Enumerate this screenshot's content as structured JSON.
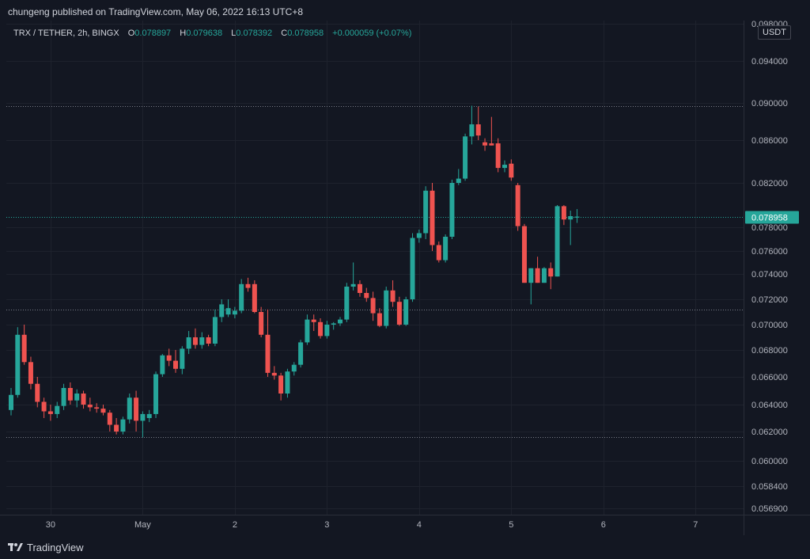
{
  "header": {
    "publisher_line": "chungeng published on TradingView.com, May 06, 2022 16:13 UTC+8"
  },
  "legend": {
    "symbol": "TRX / TETHER, 2h, BINGX",
    "o_label": "O",
    "o_value": "0.078897",
    "h_label": "H",
    "h_value": "0.079638",
    "l_label": "L",
    "l_value": "0.078392",
    "c_label": "C",
    "c_value": "0.078958",
    "change": "+0.000059 (+0.07%)"
  },
  "price_axis": {
    "unit": "USDT",
    "current_price": "0.078958"
  },
  "footer": {
    "brand": "TradingView"
  },
  "colors": {
    "background": "#131722",
    "up": "#26a69a",
    "down": "#ef5350",
    "grid": "#1e222d",
    "text": "#d1d4dc"
  },
  "chart_data": {
    "type": "candlestick",
    "title": "TRX / TETHER, 2h, BINGX",
    "y_unit": "USDT",
    "yticks": [
      0.0569,
      0.0584,
      0.06,
      0.062,
      0.064,
      0.066,
      0.068,
      0.07,
      0.072,
      0.074,
      0.076,
      0.078,
      0.082,
      0.086,
      0.09,
      0.094,
      0.098
    ],
    "ytick_labels": [
      "0.056900",
      "0.058400",
      "0.060000",
      "0.062000",
      "0.064000",
      "0.066000",
      "0.068000",
      "0.070000",
      "0.072000",
      "0.074000",
      "0.076000",
      "0.078000",
      "0.082000",
      "0.086000",
      "0.090000",
      "0.094000",
      "0.098000"
    ],
    "ylim": [
      0.0562,
      0.0985
    ],
    "xtick_labels": [
      "30",
      "May",
      "2",
      "3",
      "4",
      "5",
      "6",
      "7"
    ],
    "xtick_candle_index": [
      6,
      20,
      34,
      48,
      62,
      76,
      90,
      104
    ],
    "current_price": 0.078958,
    "horizontal_lines": [
      0.0897,
      0.0712,
      0.0616
    ],
    "candles": [
      {
        "o": 0.0636,
        "h": 0.0652,
        "l": 0.0632,
        "c": 0.0647
      },
      {
        "o": 0.0647,
        "h": 0.0698,
        "l": 0.0645,
        "c": 0.0692
      },
      {
        "o": 0.0692,
        "h": 0.07,
        "l": 0.0669,
        "c": 0.0671
      },
      {
        "o": 0.0671,
        "h": 0.0675,
        "l": 0.0651,
        "c": 0.0655
      },
      {
        "o": 0.0655,
        "h": 0.066,
        "l": 0.0638,
        "c": 0.0642
      },
      {
        "o": 0.0642,
        "h": 0.0645,
        "l": 0.063,
        "c": 0.0635
      },
      {
        "o": 0.0635,
        "h": 0.064,
        "l": 0.0628,
        "c": 0.0633
      },
      {
        "o": 0.0633,
        "h": 0.0642,
        "l": 0.063,
        "c": 0.0639
      },
      {
        "o": 0.0639,
        "h": 0.0655,
        "l": 0.0636,
        "c": 0.0652
      },
      {
        "o": 0.0652,
        "h": 0.0656,
        "l": 0.064,
        "c": 0.0643
      },
      {
        "o": 0.0643,
        "h": 0.0651,
        "l": 0.0638,
        "c": 0.0648
      },
      {
        "o": 0.0648,
        "h": 0.065,
        "l": 0.0637,
        "c": 0.064
      },
      {
        "o": 0.064,
        "h": 0.0645,
        "l": 0.0635,
        "c": 0.0638
      },
      {
        "o": 0.0638,
        "h": 0.0641,
        "l": 0.0634,
        "c": 0.0637
      },
      {
        "o": 0.0637,
        "h": 0.064,
        "l": 0.0632,
        "c": 0.0634
      },
      {
        "o": 0.0634,
        "h": 0.0636,
        "l": 0.062,
        "c": 0.0625
      },
      {
        "o": 0.0625,
        "h": 0.063,
        "l": 0.0618,
        "c": 0.062
      },
      {
        "o": 0.062,
        "h": 0.0631,
        "l": 0.0618,
        "c": 0.0629
      },
      {
        "o": 0.0629,
        "h": 0.0648,
        "l": 0.0626,
        "c": 0.0645
      },
      {
        "o": 0.0645,
        "h": 0.065,
        "l": 0.062,
        "c": 0.0628
      },
      {
        "o": 0.0628,
        "h": 0.0635,
        "l": 0.0616,
        "c": 0.0633
      },
      {
        "o": 0.063,
        "h": 0.0636,
        "l": 0.0627,
        "c": 0.0633
      },
      {
        "o": 0.0633,
        "h": 0.0664,
        "l": 0.063,
        "c": 0.0662
      },
      {
        "o": 0.0662,
        "h": 0.0677,
        "l": 0.066,
        "c": 0.0676
      },
      {
        "o": 0.0676,
        "h": 0.0681,
        "l": 0.0668,
        "c": 0.0672
      },
      {
        "o": 0.0672,
        "h": 0.068,
        "l": 0.0663,
        "c": 0.0666
      },
      {
        "o": 0.0666,
        "h": 0.0683,
        "l": 0.0662,
        "c": 0.0681
      },
      {
        "o": 0.0681,
        "h": 0.0695,
        "l": 0.0677,
        "c": 0.069
      },
      {
        "o": 0.069,
        "h": 0.0697,
        "l": 0.0681,
        "c": 0.0684
      },
      {
        "o": 0.0684,
        "h": 0.0694,
        "l": 0.0681,
        "c": 0.069
      },
      {
        "o": 0.069,
        "h": 0.0692,
        "l": 0.0683,
        "c": 0.0685
      },
      {
        "o": 0.0685,
        "h": 0.0712,
        "l": 0.0683,
        "c": 0.0706
      },
      {
        "o": 0.0706,
        "h": 0.072,
        "l": 0.0702,
        "c": 0.0716
      },
      {
        "o": 0.0708,
        "h": 0.072,
        "l": 0.0706,
        "c": 0.0713
      },
      {
        "o": 0.0708,
        "h": 0.0714,
        "l": 0.0705,
        "c": 0.0711
      },
      {
        "o": 0.0711,
        "h": 0.0736,
        "l": 0.0709,
        "c": 0.0732
      },
      {
        "o": 0.0732,
        "h": 0.0737,
        "l": 0.0726,
        "c": 0.0729
      },
      {
        "o": 0.0732,
        "h": 0.0735,
        "l": 0.0709,
        "c": 0.071
      },
      {
        "o": 0.071,
        "h": 0.0714,
        "l": 0.069,
        "c": 0.0692
      },
      {
        "o": 0.0692,
        "h": 0.0712,
        "l": 0.066,
        "c": 0.0663
      },
      {
        "o": 0.0663,
        "h": 0.0668,
        "l": 0.0658,
        "c": 0.0661
      },
      {
        "o": 0.0661,
        "h": 0.0663,
        "l": 0.0643,
        "c": 0.0648
      },
      {
        "o": 0.0648,
        "h": 0.0666,
        "l": 0.0645,
        "c": 0.0664
      },
      {
        "o": 0.0664,
        "h": 0.0671,
        "l": 0.0661,
        "c": 0.0669
      },
      {
        "o": 0.0669,
        "h": 0.0688,
        "l": 0.0667,
        "c": 0.0686
      },
      {
        "o": 0.0686,
        "h": 0.0708,
        "l": 0.0684,
        "c": 0.0704
      },
      {
        "o": 0.0704,
        "h": 0.0708,
        "l": 0.0695,
        "c": 0.0702
      },
      {
        "o": 0.0702,
        "h": 0.0705,
        "l": 0.0689,
        "c": 0.0691
      },
      {
        "o": 0.0691,
        "h": 0.0703,
        "l": 0.0689,
        "c": 0.07
      },
      {
        "o": 0.07,
        "h": 0.0702,
        "l": 0.0696,
        "c": 0.0701
      },
      {
        "o": 0.0701,
        "h": 0.0706,
        "l": 0.0699,
        "c": 0.0704
      },
      {
        "o": 0.0704,
        "h": 0.0733,
        "l": 0.0702,
        "c": 0.073
      },
      {
        "o": 0.073,
        "h": 0.075,
        "l": 0.0727,
        "c": 0.0732
      },
      {
        "o": 0.0732,
        "h": 0.0735,
        "l": 0.0722,
        "c": 0.0725
      },
      {
        "o": 0.0725,
        "h": 0.0729,
        "l": 0.0718,
        "c": 0.0721
      },
      {
        "o": 0.0721,
        "h": 0.0726,
        "l": 0.0703,
        "c": 0.0709
      },
      {
        "o": 0.0709,
        "h": 0.0713,
        "l": 0.0698,
        "c": 0.0699
      },
      {
        "o": 0.0699,
        "h": 0.073,
        "l": 0.0697,
        "c": 0.0727
      },
      {
        "o": 0.0727,
        "h": 0.0735,
        "l": 0.0714,
        "c": 0.0718
      },
      {
        "o": 0.0718,
        "h": 0.0722,
        "l": 0.0699,
        "c": 0.07
      },
      {
        "o": 0.07,
        "h": 0.0722,
        "l": 0.0699,
        "c": 0.072
      },
      {
        "o": 0.072,
        "h": 0.0775,
        "l": 0.0718,
        "c": 0.0771
      },
      {
        "o": 0.0771,
        "h": 0.0778,
        "l": 0.0767,
        "c": 0.0775
      },
      {
        "o": 0.0775,
        "h": 0.0817,
        "l": 0.077,
        "c": 0.0813
      },
      {
        "o": 0.0813,
        "h": 0.082,
        "l": 0.076,
        "c": 0.0765
      },
      {
        "o": 0.0765,
        "h": 0.0768,
        "l": 0.075,
        "c": 0.0752
      },
      {
        "o": 0.0752,
        "h": 0.0774,
        "l": 0.075,
        "c": 0.0772
      },
      {
        "o": 0.0772,
        "h": 0.0823,
        "l": 0.077,
        "c": 0.082
      },
      {
        "o": 0.082,
        "h": 0.0833,
        "l": 0.0818,
        "c": 0.0824
      },
      {
        "o": 0.0824,
        "h": 0.0867,
        "l": 0.0822,
        "c": 0.0864
      },
      {
        "o": 0.0864,
        "h": 0.0897,
        "l": 0.0856,
        "c": 0.0877
      },
      {
        "o": 0.0877,
        "h": 0.0896,
        "l": 0.086,
        "c": 0.0865
      },
      {
        "o": 0.0858,
        "h": 0.0862,
        "l": 0.085,
        "c": 0.0855
      },
      {
        "o": 0.0857,
        "h": 0.0885,
        "l": 0.0855,
        "c": 0.0855
      },
      {
        "o": 0.0857,
        "h": 0.0862,
        "l": 0.083,
        "c": 0.0834
      },
      {
        "o": 0.0834,
        "h": 0.0841,
        "l": 0.083,
        "c": 0.0837
      },
      {
        "o": 0.0838,
        "h": 0.0842,
        "l": 0.0822,
        "c": 0.0825
      },
      {
        "o": 0.0818,
        "h": 0.082,
        "l": 0.0777,
        "c": 0.0781
      },
      {
        "o": 0.0781,
        "h": 0.0783,
        "l": 0.0733,
        "c": 0.0733
      },
      {
        "o": 0.0733,
        "h": 0.0745,
        "l": 0.0716,
        "c": 0.0745
      },
      {
        "o": 0.0745,
        "h": 0.0755,
        "l": 0.0733,
        "c": 0.0733
      },
      {
        "o": 0.0733,
        "h": 0.0746,
        "l": 0.0733,
        "c": 0.0745
      },
      {
        "o": 0.0745,
        "h": 0.075,
        "l": 0.0728,
        "c": 0.0738
      },
      {
        "o": 0.0738,
        "h": 0.08,
        "l": 0.0738,
        "c": 0.0799
      },
      {
        "o": 0.0799,
        "h": 0.08,
        "l": 0.0782,
        "c": 0.0787
      },
      {
        "o": 0.0787,
        "h": 0.0795,
        "l": 0.0765,
        "c": 0.079
      },
      {
        "o": 0.078897,
        "h": 0.079638,
        "l": 0.078392,
        "c": 0.078958
      }
    ]
  }
}
